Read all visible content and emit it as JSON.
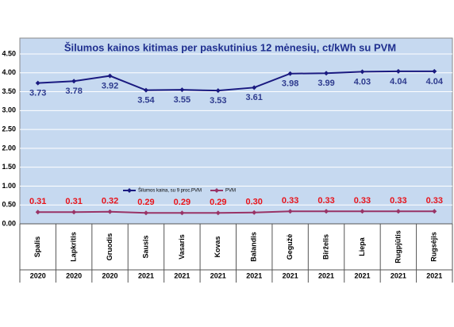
{
  "chart_data": {
    "type": "line",
    "title": "Šilumos kainos kitimas per paskutinius 12 mėnesių, ct/kWh su PVM",
    "categories": [
      "Spalis",
      "Lapkritis",
      "Gruodis",
      "Sausis",
      "Vasaris",
      "Kovas",
      "Balandis",
      "Gegužė",
      "Birželis",
      "Liepa",
      "Rugpjūtis",
      "Rugsėjis"
    ],
    "category_groups": [
      "2020",
      "2020",
      "2020",
      "2021",
      "2021",
      "2021",
      "2021",
      "2021",
      "2021",
      "2021",
      "2021",
      "2021"
    ],
    "series": [
      {
        "name": "Šilumos kaina, su 9 proc.PVM",
        "color": "#1a1a80",
        "label_color": "#2e3b8e",
        "values": [
          3.73,
          3.78,
          3.92,
          3.54,
          3.55,
          3.53,
          3.61,
          3.98,
          3.99,
          4.03,
          4.04,
          4.04
        ],
        "value_labels": [
          "3.73",
          "3.78",
          "3.92",
          "3.54",
          "3.55",
          "3.53",
          "3.61",
          "3.98",
          "3.99",
          "4.03",
          "4.04",
          "4.04"
        ]
      },
      {
        "name": "PVM",
        "color": "#993366",
        "label_color": "#e8141b",
        "values": [
          0.31,
          0.31,
          0.32,
          0.29,
          0.29,
          0.29,
          0.3,
          0.33,
          0.33,
          0.33,
          0.33,
          0.33
        ],
        "value_labels": [
          "0.31",
          "0.31",
          "0.32",
          "0.29",
          "0.29",
          "0.29",
          "0.30",
          "0.33",
          "0.33",
          "0.33",
          "0.33",
          "0.33"
        ]
      }
    ],
    "ylim": [
      0,
      4.5
    ],
    "yticks": [
      {
        "value": 0,
        "label": "0.00"
      },
      {
        "value": 0.5,
        "label": "0.50"
      },
      {
        "value": 1,
        "label": "1.00"
      },
      {
        "value": 1.5,
        "label": "1.50"
      },
      {
        "value": 2,
        "label": "2.00"
      },
      {
        "value": 2.5,
        "label": "2.50"
      },
      {
        "value": 3,
        "label": "3.00"
      },
      {
        "value": 3.5,
        "label": "3.50"
      },
      {
        "value": 4,
        "label": "4.00"
      },
      {
        "value": 4.5,
        "label": "4.50"
      }
    ],
    "grid": true,
    "background": "#c6d9f0"
  }
}
